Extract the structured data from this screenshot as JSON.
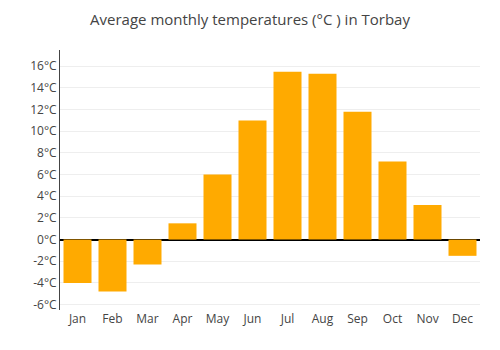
{
  "chart_data": {
    "type": "bar",
    "title": "Average monthly temperatures (°C ) in Torbay",
    "categories": [
      "Jan",
      "Feb",
      "Mar",
      "Apr",
      "May",
      "Jun",
      "Jul",
      "Aug",
      "Sep",
      "Oct",
      "Nov",
      "Dec"
    ],
    "values": [
      -4.0,
      -4.8,
      -2.3,
      1.5,
      6.0,
      11.0,
      15.5,
      15.3,
      11.8,
      7.2,
      3.2,
      -1.5
    ],
    "color": "#FFAA00",
    "ylim": [
      -6.5,
      17.5
    ],
    "yticks": [
      {
        "value": -6,
        "label": "-6°C"
      },
      {
        "value": -4,
        "label": "-4°C"
      },
      {
        "value": -2,
        "label": "-2°C"
      },
      {
        "value": 0,
        "label": "0°C"
      },
      {
        "value": 2,
        "label": "2°C"
      },
      {
        "value": 4,
        "label": "4°C"
      },
      {
        "value": 6,
        "label": "6°C"
      },
      {
        "value": 8,
        "label": "8°C"
      },
      {
        "value": 10,
        "label": "10°C"
      },
      {
        "value": 12,
        "label": "12°C"
      },
      {
        "value": 14,
        "label": "14°C"
      },
      {
        "value": 16,
        "label": "16°C"
      }
    ],
    "grid": true
  }
}
